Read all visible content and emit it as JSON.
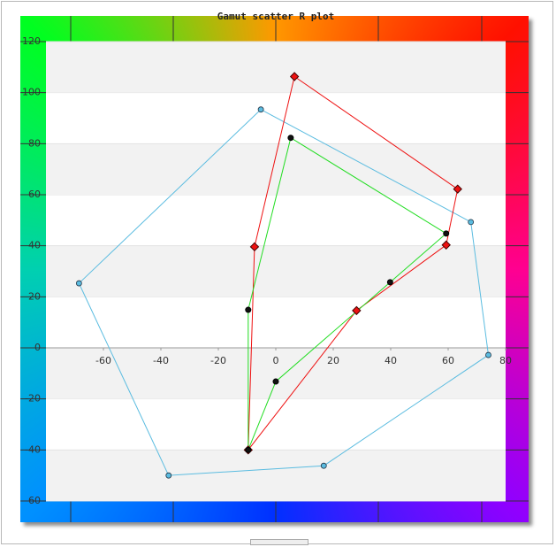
{
  "chart_data": {
    "type": "scatter",
    "title": "Gamut scatter R plot",
    "xlim": [
      -80,
      80
    ],
    "ylim": [
      -60,
      120
    ],
    "xticks": [
      -60,
      -40,
      -20,
      0,
      20,
      40,
      60,
      80
    ],
    "yticks": [
      -60,
      -40,
      -20,
      0,
      20,
      40,
      60,
      80,
      100,
      120
    ],
    "grid": true,
    "closed": true,
    "series": [
      {
        "color": "#5bbce0",
        "marker": "circle",
        "x": [
          -68.5,
          -5.2,
          67.9,
          74,
          16.7,
          -37.3
        ],
        "y": [
          25.3,
          93.4,
          49.3,
          -2.8,
          -46.2,
          -50
        ]
      },
      {
        "color": "#ee1111",
        "marker": "diamond",
        "x": [
          6.5,
          63.3,
          59.3,
          28.1,
          -9.6,
          -7.4
        ],
        "y": [
          106.3,
          62.2,
          40.3,
          14.6,
          -40,
          39.6
        ]
      },
      {
        "color": "#22dd22",
        "marker": "dot",
        "x": [
          5.2,
          59.3,
          39.8,
          0,
          -9.6,
          -9.6
        ],
        "y": [
          82.3,
          44.8,
          25.7,
          -13.2,
          -40,
          14.9
        ]
      }
    ]
  }
}
